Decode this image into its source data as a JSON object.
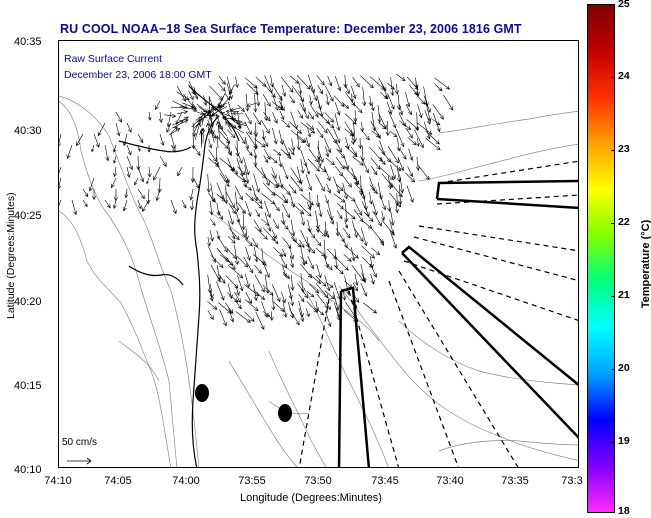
{
  "title": "RU COOL  NOAA−18  Sea Surface Temperature:  December 23, 2006 1816 GMT",
  "overlay": {
    "line1": "Raw Surface Current",
    "line2": "December 23, 2006 18:00 GMT"
  },
  "scale_vector_label": "50 cm/s",
  "axes": {
    "xlabel": "Longitude (Degrees:Minutes)",
    "ylabel": "Latitude (Degrees:Minutes)",
    "x_ticks": [
      "74:10",
      "74:05",
      "74:00",
      "73:55",
      "73:50",
      "73:45",
      "73:40",
      "73:35",
      "73:3"
    ],
    "y_ticks": [
      "40:35",
      "40:30",
      "40:25",
      "40:20",
      "40:15",
      "40:10"
    ]
  },
  "colorbar": {
    "label": "Temperature (°C)",
    "ticks": [
      "25",
      "24",
      "23",
      "22",
      "21",
      "20",
      "19",
      "18"
    ],
    "colors": [
      "#ff2aff",
      "#8000ff",
      "#0000ff",
      "#00a0ff",
      "#00ffff",
      "#00ff80",
      "#80ff00",
      "#ffff00",
      "#ffa000",
      "#ff3000",
      "#c00000",
      "#800000"
    ]
  }
}
